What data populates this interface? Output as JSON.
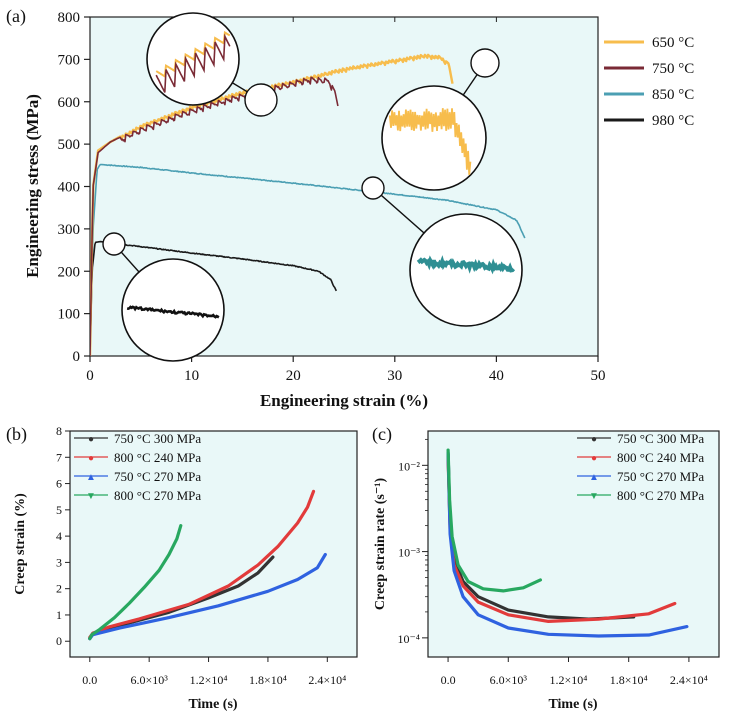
{
  "figure": {
    "panels": [
      {
        "id": "a",
        "label": "(a)"
      },
      {
        "id": "b",
        "label": "(b)"
      },
      {
        "id": "c",
        "label": "(c)"
      }
    ]
  },
  "chart_data": [
    {
      "id": "a",
      "type": "line",
      "title": "",
      "xlabel": "Engineering strain (%)",
      "ylabel": "Engineering stress (MPa)",
      "xlim": [
        0,
        50
      ],
      "ylim": [
        0,
        800
      ],
      "xticks": [
        0,
        10,
        20,
        30,
        40,
        50
      ],
      "yticks": [
        0,
        100,
        200,
        300,
        400,
        500,
        600,
        700,
        800
      ],
      "legend_position": "top-right",
      "insets": [
        "650 °C serrated region near 32% strain",
        "750 °C serrated region near 13% strain",
        "850 °C smooth region near 23% strain",
        "980 °C smooth region near 2% strain"
      ],
      "series": [
        {
          "name": "650 °C",
          "color": "#f7bd4d",
          "serrated": true,
          "points": [
            [
              0,
              0
            ],
            [
              0.3,
              400
            ],
            [
              0.8,
              485
            ],
            [
              2,
              505
            ],
            [
              5,
              545
            ],
            [
              10,
              590
            ],
            [
              15,
              625
            ],
            [
              20,
              650
            ],
            [
              25,
              680
            ],
            [
              30,
              700
            ],
            [
              33,
              712
            ],
            [
              34.5,
              708
            ],
            [
              35.3,
              690
            ],
            [
              35.7,
              640
            ]
          ]
        },
        {
          "name": "750 °C",
          "color": "#7a2a35",
          "serrated": true,
          "points": [
            [
              0,
              0
            ],
            [
              0.3,
              400
            ],
            [
              0.8,
              480
            ],
            [
              2,
              505
            ],
            [
              5,
              540
            ],
            [
              10,
              585
            ],
            [
              15,
              620
            ],
            [
              20,
              650
            ],
            [
              22,
              660
            ],
            [
              23.5,
              655
            ],
            [
              24.1,
              625
            ],
            [
              24.4,
              590
            ]
          ]
        },
        {
          "name": "850 °C",
          "color": "#4b9fb3",
          "serrated": false,
          "points": [
            [
              0,
              0
            ],
            [
              0.3,
              300
            ],
            [
              0.7,
              440
            ],
            [
              1,
              452
            ],
            [
              5,
              445
            ],
            [
              10,
              432
            ],
            [
              15,
              420
            ],
            [
              20,
              408
            ],
            [
              25,
              395
            ],
            [
              30,
              382
            ],
            [
              35,
              368
            ],
            [
              40,
              345
            ],
            [
              42,
              320
            ],
            [
              42.8,
              278
            ]
          ]
        },
        {
          "name": "980 °C",
          "color": "#1a1a1a",
          "serrated": false,
          "points": [
            [
              0,
              0
            ],
            [
              0.2,
              200
            ],
            [
              0.5,
              268
            ],
            [
              1,
              270
            ],
            [
              5,
              258
            ],
            [
              10,
              243
            ],
            [
              15,
              229
            ],
            [
              20,
              213
            ],
            [
              22.5,
              200
            ],
            [
              23.7,
              180
            ],
            [
              24.3,
              150
            ]
          ]
        }
      ]
    },
    {
      "id": "b",
      "type": "line",
      "title": "",
      "xlabel": "Time (s)",
      "ylabel": "Creep strain (%)",
      "xlim": [
        -2000,
        27000
      ],
      "ylim": [
        -0.6,
        8
      ],
      "xticks": [
        0,
        6000,
        12000,
        18000,
        24000
      ],
      "xtick_labels": [
        "0.0",
        "6.0×10³",
        "1.2×10⁴",
        "1.8×10⁴",
        "2.4×10⁴"
      ],
      "yticks": [
        0,
        1,
        2,
        3,
        4,
        5,
        6,
        7,
        8
      ],
      "legend_position": "top-left",
      "series": [
        {
          "name": "750 °C 300 MPa",
          "color": "#333333",
          "marker": "●",
          "points": [
            [
              0,
              0.1
            ],
            [
              300,
              0.3
            ],
            [
              2000,
              0.5
            ],
            [
              5000,
              0.8
            ],
            [
              8000,
              1.1
            ],
            [
              12000,
              1.65
            ],
            [
              15000,
              2.1
            ],
            [
              17000,
              2.6
            ],
            [
              18500,
              3.2
            ]
          ]
        },
        {
          "name": "800 °C 240 MPa",
          "color": "#e23b3b",
          "marker": "●",
          "points": [
            [
              0,
              0.15
            ],
            [
              300,
              0.3
            ],
            [
              2000,
              0.55
            ],
            [
              5000,
              0.85
            ],
            [
              10000,
              1.4
            ],
            [
              14000,
              2.1
            ],
            [
              17000,
              2.9
            ],
            [
              19000,
              3.6
            ],
            [
              21000,
              4.5
            ],
            [
              22000,
              5.1
            ],
            [
              22600,
              5.7
            ]
          ]
        },
        {
          "name": "750 °C 270 MPa",
          "color": "#2f62e0",
          "marker": "▲",
          "points": [
            [
              0,
              0.1
            ],
            [
              300,
              0.25
            ],
            [
              3000,
              0.5
            ],
            [
              8000,
              0.9
            ],
            [
              13000,
              1.35
            ],
            [
              18000,
              1.9
            ],
            [
              21000,
              2.35
            ],
            [
              23000,
              2.8
            ],
            [
              23800,
              3.3
            ]
          ]
        },
        {
          "name": "800 °C 270 MPa",
          "color": "#28a860",
          "marker": "▼",
          "points": [
            [
              0,
              0.1
            ],
            [
              200,
              0.25
            ],
            [
              1000,
              0.45
            ],
            [
              2500,
              0.9
            ],
            [
              4000,
              1.45
            ],
            [
              5500,
              2.05
            ],
            [
              7000,
              2.7
            ],
            [
              8000,
              3.3
            ],
            [
              8800,
              3.9
            ],
            [
              9200,
              4.4
            ]
          ]
        }
      ]
    },
    {
      "id": "c",
      "type": "line",
      "title": "",
      "xlabel": "Time (s)",
      "ylabel": "Creep strain rate (s⁻¹)",
      "yscale": "log",
      "xlim": [
        -2000,
        27000
      ],
      "ylim": [
        6e-05,
        0.025
      ],
      "xticks": [
        0,
        6000,
        12000,
        18000,
        24000
      ],
      "xtick_labels": [
        "0.0",
        "6.0×10³",
        "1.2×10⁴",
        "1.8×10⁴",
        "2.4×10⁴"
      ],
      "yticks_log": [
        -4,
        -3,
        -2
      ],
      "ytick_labels": [
        "10⁻⁴",
        "10⁻³",
        "10⁻²"
      ],
      "legend_position": "top-right",
      "series": [
        {
          "name": "750 °C 300 MPa",
          "color": "#333333",
          "marker": "●",
          "points": [
            [
              0,
              0.0135
            ],
            [
              200,
              0.002
            ],
            [
              600,
              0.0008
            ],
            [
              1500,
              0.00045
            ],
            [
              3000,
              0.0003
            ],
            [
              6000,
              0.00021
            ],
            [
              10000,
              0.000175
            ],
            [
              14000,
              0.000165
            ],
            [
              18500,
              0.000175
            ]
          ]
        },
        {
          "name": "800 °C 240 MPa",
          "color": "#e23b3b",
          "marker": "●",
          "points": [
            [
              0,
              0.012
            ],
            [
              200,
              0.0018
            ],
            [
              600,
              0.0007
            ],
            [
              1500,
              0.0004
            ],
            [
              3000,
              0.00026
            ],
            [
              6000,
              0.000185
            ],
            [
              10000,
              0.000155
            ],
            [
              15000,
              0.000165
            ],
            [
              20000,
              0.00019
            ],
            [
              22600,
              0.00025
            ]
          ]
        },
        {
          "name": "750 °C 270 MPa",
          "color": "#2f62e0",
          "marker": "▲",
          "points": [
            [
              0,
              0.014
            ],
            [
              200,
              0.0016
            ],
            [
              600,
              0.0006
            ],
            [
              1500,
              0.0003
            ],
            [
              3000,
              0.000185
            ],
            [
              6000,
              0.00013
            ],
            [
              10000,
              0.00011
            ],
            [
              15000,
              0.000105
            ],
            [
              20000,
              0.000108
            ],
            [
              23800,
              0.000135
            ]
          ]
        },
        {
          "name": "800 °C 270 MPa",
          "color": "#28a860",
          "marker": "▼",
          "points": [
            [
              0,
              0.015
            ],
            [
              150,
              0.004
            ],
            [
              400,
              0.0015
            ],
            [
              1000,
              0.0007
            ],
            [
              2000,
              0.00045
            ],
            [
              3500,
              0.00037
            ],
            [
              5500,
              0.00035
            ],
            [
              7500,
              0.00038
            ],
            [
              9200,
              0.00047
            ]
          ]
        }
      ]
    }
  ]
}
